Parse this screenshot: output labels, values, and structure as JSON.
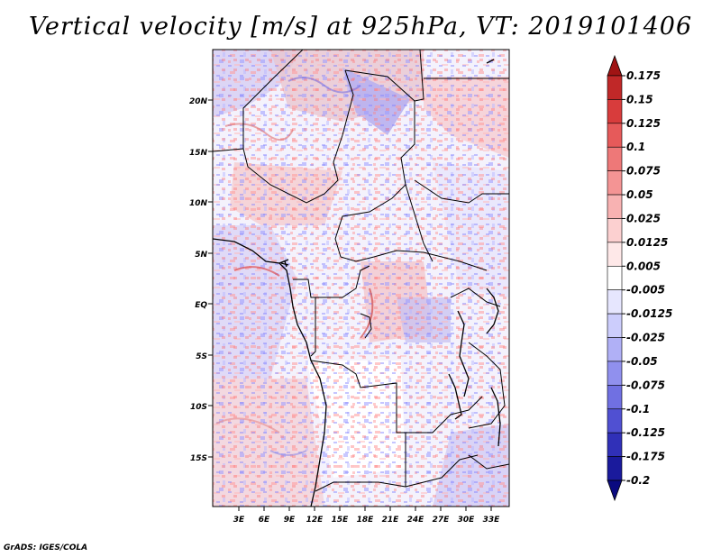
{
  "title": "Vertical velocity [m/s] at 925hPa, VT: 2019101406",
  "credit": "GrADS: IGES/COLA",
  "map": {
    "variable": "Vertical velocity",
    "units": "m/s",
    "level": "925hPa",
    "valid_time": "2019101406",
    "lat_labels": [
      "20N",
      "15N",
      "10N",
      "5N",
      "EQ",
      "5S",
      "10S",
      "15S"
    ],
    "lon_labels": [
      "3E",
      "6E",
      "9E",
      "12E",
      "15E",
      "18E",
      "21E",
      "24E",
      "27E",
      "30E",
      "33E"
    ]
  },
  "colorbar": {
    "levels": [
      "0.175",
      "0.15",
      "0.125",
      "0.1",
      "0.075",
      "0.05",
      "0.025",
      "0.0125",
      "0.005",
      "-0.005",
      "-0.0125",
      "-0.025",
      "-0.05",
      "-0.075",
      "-0.1",
      "-0.125",
      "-0.175",
      "-0.2"
    ],
    "colors": [
      "#a01414",
      "#c02828",
      "#d83c3c",
      "#e65a5a",
      "#ee7878",
      "#f49494",
      "#f8b2b2",
      "#fcd0d0",
      "#fee8e8",
      "#ffffff",
      "#e6e6fe",
      "#cccdfc",
      "#b0b0f6",
      "#9090ee",
      "#7070e2",
      "#5050d2",
      "#3030b8",
      "#1a1a9c",
      "#0a0a80"
    ]
  }
}
